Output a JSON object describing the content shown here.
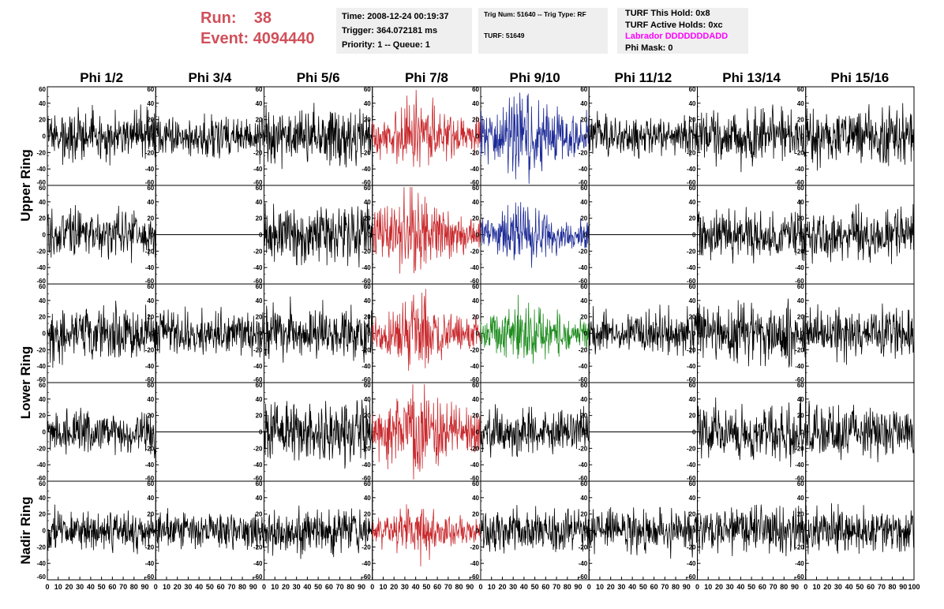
{
  "header": {
    "run_label": "Run:",
    "run_value": "38",
    "event_label": "Event:",
    "event_value": "4094440"
  },
  "info": {
    "time": "Time: 2008-12-24 00:19:37",
    "trigger": "Trigger: 364.072181 ms",
    "priority": "Priority: 1 -- Queue: 1",
    "trig_num": "Trig Num: 51640 -- Trig Type: RF",
    "turf": "TURF: 51649",
    "turf_hold": "TURF This Hold: 0x8",
    "turf_active": "TURF Active Holds: 0xc",
    "labrador": "Labrador DDDDDDDADD",
    "phi_mask": "Phi Mask: 0"
  },
  "colors": {
    "default": "#000000",
    "red": "#c8282c",
    "blue": "#1c2a96",
    "green": "#1e8c1e",
    "run_text": "#d0505a",
    "labrador_text": "#ff00ff",
    "box_bg": "#efefef"
  },
  "chart_data": {
    "type": "line",
    "columns": [
      "Phi 1/2",
      "Phi 3/4",
      "Phi 5/6",
      "Phi 7/8",
      "Phi 9/10",
      "Phi 11/12",
      "Phi 13/14",
      "Phi 15/16"
    ],
    "ring_labels": [
      {
        "name": "Upper Ring",
        "rows": [
          0,
          1
        ]
      },
      {
        "name": "Lower Ring",
        "rows": [
          2,
          3
        ]
      },
      {
        "name": "Nadir Ring",
        "rows": [
          4
        ]
      }
    ],
    "ylim": [
      -60,
      60
    ],
    "yticks": [
      -60,
      -40,
      -20,
      0,
      20,
      40,
      60
    ],
    "xlim": [
      0,
      100
    ],
    "xticks": [
      0,
      10,
      20,
      30,
      40,
      50,
      60,
      70,
      80,
      90,
      100
    ],
    "grid": false,
    "panels": [
      [
        {
          "amp": 14,
          "color": "default"
        },
        {
          "amp": 12,
          "color": "default"
        },
        {
          "amp": 16,
          "color": "default"
        },
        {
          "amp": 18,
          "color": "red"
        },
        {
          "amp": 22,
          "color": "blue"
        },
        {
          "amp": 12,
          "color": "default"
        },
        {
          "amp": 16,
          "color": "default"
        },
        {
          "amp": 16,
          "color": "default"
        }
      ],
      [
        {
          "amp": 14,
          "color": "default"
        },
        {
          "amp": 0,
          "color": "default"
        },
        {
          "amp": 18,
          "color": "default"
        },
        {
          "amp": 20,
          "color": "red"
        },
        {
          "amp": 14,
          "color": "blue"
        },
        {
          "amp": 0,
          "color": "default"
        },
        {
          "amp": 15,
          "color": "default"
        },
        {
          "amp": 15,
          "color": "default"
        }
      ],
      [
        {
          "amp": 16,
          "color": "default"
        },
        {
          "amp": 13,
          "color": "default"
        },
        {
          "amp": 16,
          "color": "default"
        },
        {
          "amp": 18,
          "color": "red"
        },
        {
          "amp": 16,
          "color": "green"
        },
        {
          "amp": 13,
          "color": "default"
        },
        {
          "amp": 17,
          "color": "default"
        },
        {
          "amp": 15,
          "color": "default"
        }
      ],
      [
        {
          "amp": 12,
          "color": "default"
        },
        {
          "amp": 0,
          "color": "default"
        },
        {
          "amp": 18,
          "color": "default"
        },
        {
          "amp": 22,
          "color": "red"
        },
        {
          "amp": 13,
          "color": "default"
        },
        {
          "amp": 0,
          "color": "default"
        },
        {
          "amp": 16,
          "color": "default"
        },
        {
          "amp": 16,
          "color": "default"
        }
      ],
      [
        {
          "amp": 12,
          "color": "default"
        },
        {
          "amp": 10,
          "color": "default"
        },
        {
          "amp": 13,
          "color": "default"
        },
        {
          "amp": 13,
          "color": "red"
        },
        {
          "amp": 12,
          "color": "default"
        },
        {
          "amp": 13,
          "color": "default"
        },
        {
          "amp": 14,
          "color": "default"
        },
        {
          "amp": 13,
          "color": "default"
        }
      ]
    ]
  }
}
